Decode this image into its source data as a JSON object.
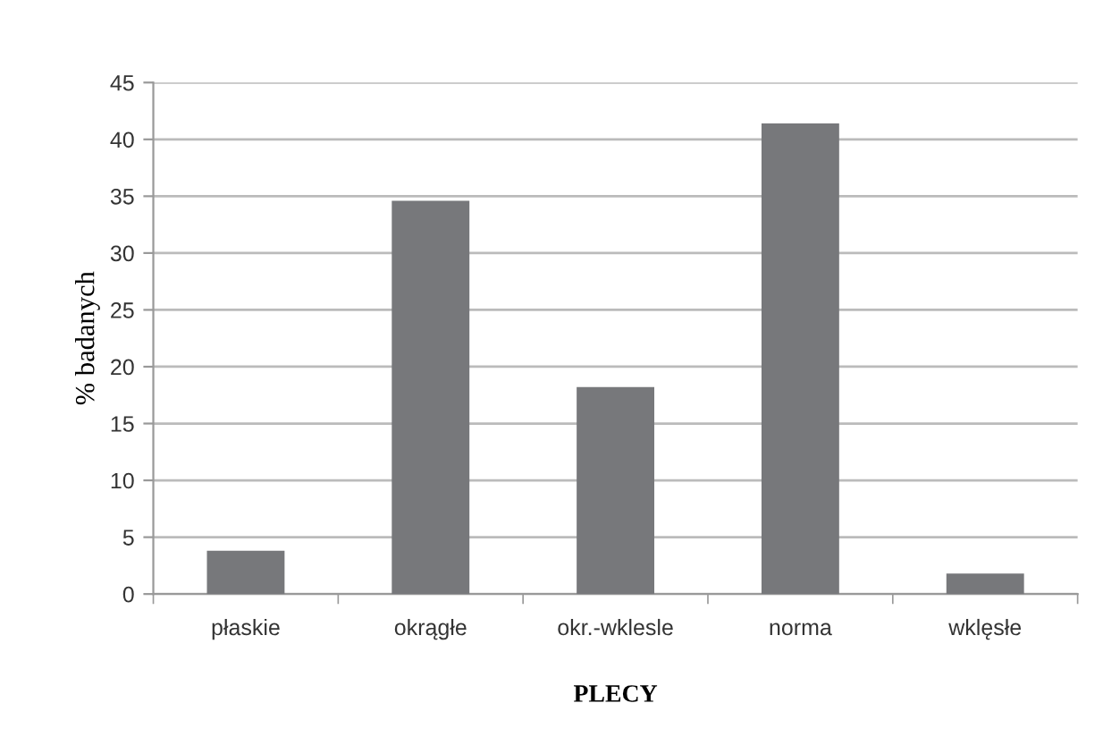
{
  "chart_data": {
    "type": "bar",
    "xlabel": "PLECY",
    "ylabel": "% badanych",
    "categories": [
      "płaskie",
      "okrągłe",
      "okr.-wklesle",
      "norma",
      "wklęsłe"
    ],
    "values": [
      3.8,
      34.6,
      18.2,
      41.4,
      1.8
    ],
    "color": "#77787b",
    "ylim": [
      0,
      45
    ],
    "yticks": [
      0,
      5,
      10,
      15,
      20,
      25,
      30,
      35,
      40,
      45
    ],
    "grid": "y"
  }
}
